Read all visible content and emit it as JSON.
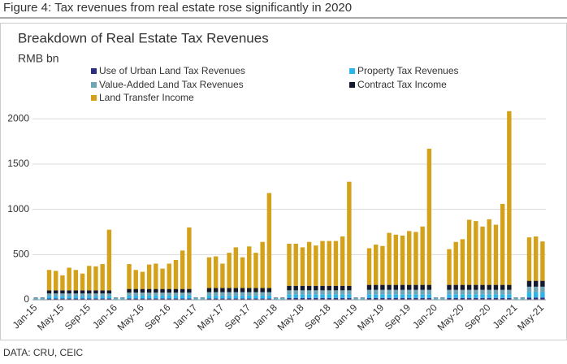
{
  "figure_title": "Figure 4: Tax revenues from real estate rose significantly in 2020",
  "source": "DATA: CRU, CEIC",
  "chart_data": {
    "type": "stacked_bar",
    "title": "Breakdown of Real Estate Tax Revenues",
    "y_label": "RMB bn",
    "categories": [
      "Jan-15",
      null,
      null,
      null,
      "May-15",
      null,
      null,
      null,
      "Sep-15",
      null,
      null,
      null,
      "Jan-16",
      null,
      null,
      null,
      "May-16",
      null,
      null,
      null,
      "Sep-16",
      null,
      null,
      null,
      "Jan-17",
      null,
      null,
      null,
      "May-17",
      null,
      null,
      null,
      "Sep-17",
      null,
      null,
      null,
      "Jan-18",
      null,
      null,
      null,
      "May-18",
      null,
      null,
      null,
      "Sep-18",
      null,
      null,
      null,
      "Jan-19",
      null,
      null,
      null,
      "May-19",
      null,
      null,
      null,
      "Sep-19",
      null,
      null,
      null,
      "Jan-20",
      null,
      null,
      null,
      "May-20",
      null,
      null,
      null,
      "Sep-20",
      null,
      null,
      null,
      "Jan-21",
      null,
      null,
      null,
      "May-21"
    ],
    "series": [
      {
        "name": "Use of Urban Land Tax Revenues",
        "color": "#2b2f7e",
        "values": [
          5,
          5,
          15,
          15,
          15,
          15,
          15,
          15,
          15,
          15,
          15,
          15,
          5,
          5,
          15,
          15,
          15,
          15,
          15,
          15,
          15,
          15,
          15,
          15,
          5,
          5,
          15,
          15,
          15,
          15,
          15,
          15,
          15,
          15,
          15,
          15,
          5,
          5,
          20,
          20,
          20,
          20,
          20,
          20,
          20,
          20,
          20,
          20,
          5,
          5,
          20,
          20,
          20,
          20,
          20,
          20,
          20,
          20,
          20,
          20,
          5,
          5,
          20,
          20,
          20,
          20,
          20,
          20,
          20,
          20,
          20,
          20,
          5,
          5,
          25,
          25,
          25
        ]
      },
      {
        "name": "Property Tax Revenues",
        "color": "#2bb5e8",
        "values": [
          8,
          8,
          25,
          25,
          25,
          25,
          25,
          25,
          25,
          25,
          25,
          25,
          8,
          8,
          30,
          30,
          30,
          30,
          30,
          30,
          30,
          30,
          30,
          30,
          8,
          8,
          30,
          30,
          30,
          30,
          30,
          30,
          30,
          30,
          30,
          30,
          8,
          8,
          40,
          40,
          40,
          40,
          40,
          40,
          40,
          40,
          40,
          40,
          8,
          8,
          40,
          40,
          40,
          40,
          40,
          40,
          40,
          40,
          40,
          40,
          8,
          8,
          40,
          40,
          40,
          40,
          40,
          40,
          40,
          40,
          40,
          40,
          8,
          8,
          60,
          60,
          60
        ]
      },
      {
        "name": "Value-Added Land Tax Revenues",
        "color": "#6fa5b5",
        "values": [
          5,
          5,
          30,
          30,
          30,
          30,
          30,
          30,
          30,
          30,
          30,
          30,
          5,
          5,
          35,
          35,
          35,
          35,
          35,
          35,
          35,
          35,
          35,
          35,
          5,
          5,
          40,
          40,
          40,
          40,
          40,
          40,
          40,
          40,
          40,
          40,
          5,
          5,
          45,
          45,
          45,
          45,
          45,
          45,
          45,
          45,
          45,
          45,
          5,
          5,
          50,
          50,
          50,
          50,
          50,
          50,
          50,
          50,
          50,
          50,
          5,
          5,
          50,
          50,
          50,
          50,
          50,
          50,
          50,
          50,
          50,
          50,
          5,
          5,
          60,
          60,
          60
        ]
      },
      {
        "name": "Contract Tax Income",
        "color": "#141a2e",
        "values": [
          5,
          5,
          35,
          35,
          35,
          35,
          35,
          35,
          35,
          35,
          35,
          35,
          5,
          5,
          40,
          40,
          40,
          40,
          40,
          40,
          40,
          40,
          40,
          40,
          5,
          5,
          45,
          45,
          45,
          45,
          45,
          45,
          45,
          45,
          45,
          45,
          5,
          5,
          50,
          50,
          50,
          50,
          50,
          50,
          50,
          50,
          50,
          50,
          5,
          5,
          55,
          55,
          55,
          55,
          55,
          55,
          55,
          55,
          55,
          55,
          5,
          5,
          55,
          55,
          55,
          55,
          55,
          55,
          55,
          55,
          55,
          55,
          5,
          5,
          65,
          65,
          65
        ]
      },
      {
        "name": "Land Transfer Income",
        "color": "#d4a21a",
        "values": [
          0,
          0,
          225,
          215,
          165,
          250,
          225,
          185,
          270,
          265,
          290,
          670,
          0,
          0,
          275,
          210,
          190,
          270,
          280,
          225,
          280,
          320,
          425,
          680,
          0,
          0,
          340,
          350,
          270,
          390,
          450,
          340,
          460,
          390,
          510,
          1050,
          0,
          0,
          465,
          465,
          425,
          485,
          445,
          495,
          495,
          495,
          545,
          1150,
          0,
          0,
          405,
          445,
          430,
          575,
          555,
          545,
          595,
          585,
          645,
          1505,
          0,
          0,
          395,
          475,
          505,
          720,
          705,
          645,
          725,
          665,
          895,
          1920,
          0,
          0,
          480,
          490,
          435
        ]
      }
    ],
    "ylim": [
      0,
      2200
    ],
    "yticks": [
      0,
      500,
      1000,
      1500,
      2000
    ],
    "grid": true
  }
}
